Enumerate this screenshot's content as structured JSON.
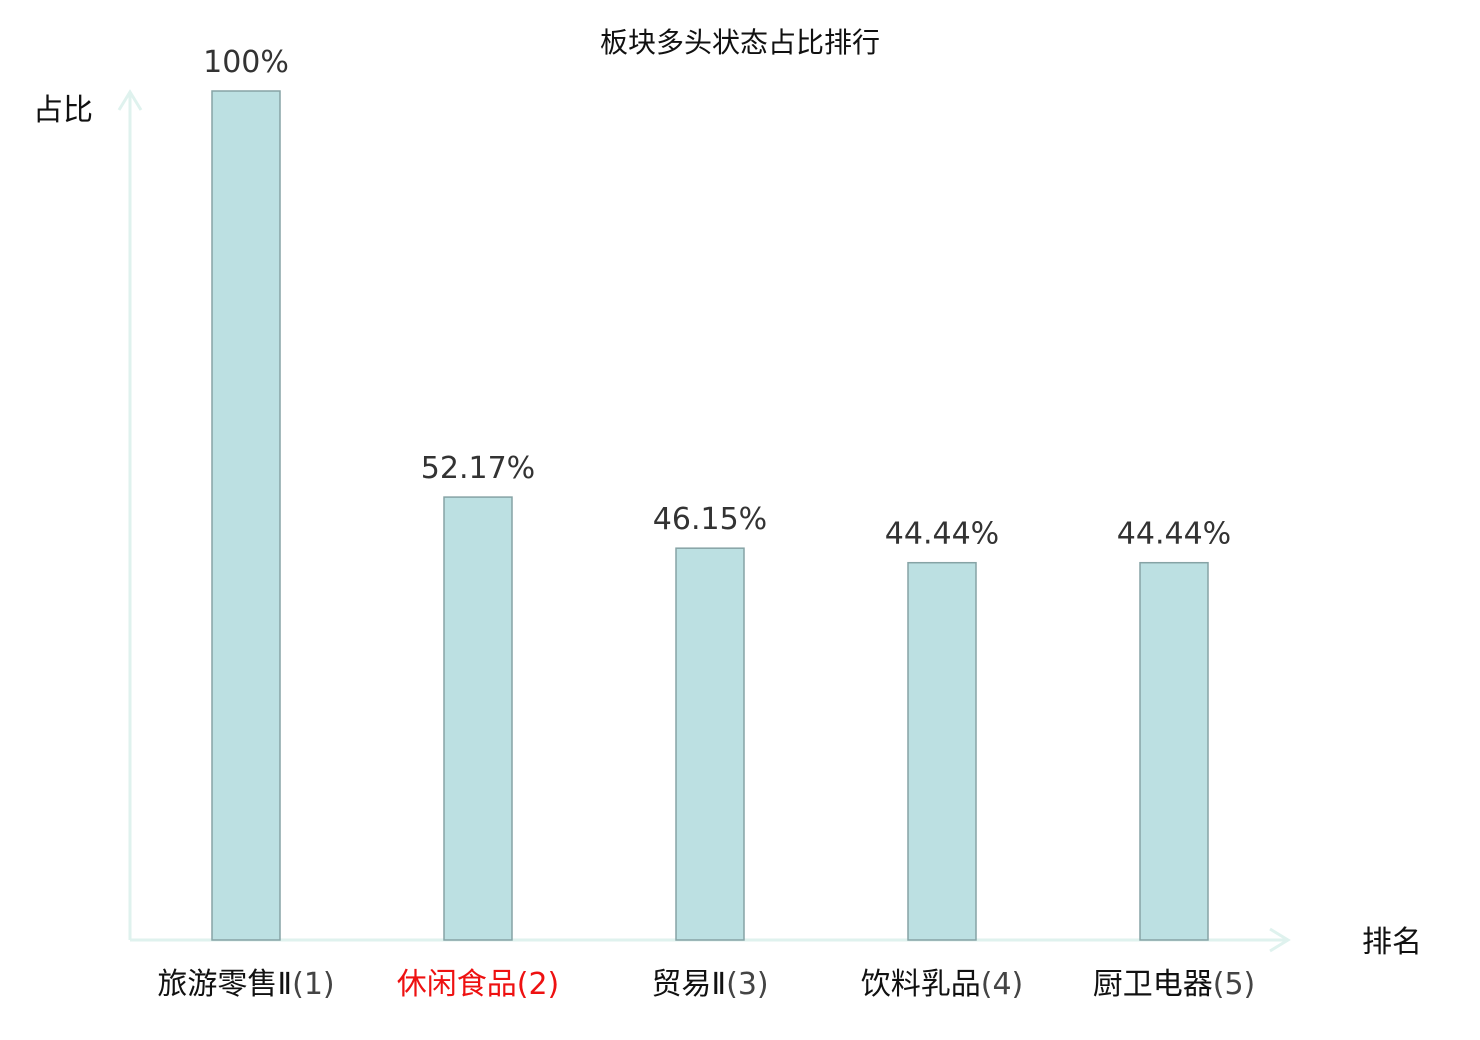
{
  "chart_data": {
    "type": "bar",
    "title": "板块多头状态占比排行",
    "ylabel": "占比",
    "xlabel": "排名",
    "ylim": [
      0,
      100
    ],
    "grid": false,
    "categories": [
      {
        "name": "旅游零售Ⅱ",
        "rank": "(1)",
        "highlight": false
      },
      {
        "name": "休闲食品",
        "rank": "(2)",
        "highlight": true
      },
      {
        "name": "贸易Ⅱ",
        "rank": "(3)",
        "highlight": false
      },
      {
        "name": "饮料乳品",
        "rank": "(4)",
        "highlight": false
      },
      {
        "name": "厨卫电器",
        "rank": "(5)",
        "highlight": false
      }
    ],
    "values": [
      100,
      52.17,
      46.15,
      44.44,
      44.44
    ],
    "value_labels": [
      "100%",
      "52.17%",
      "46.15%",
      "44.44%",
      "44.44%"
    ],
    "colors": {
      "bar_fill": "#bce0e2",
      "bar_stroke": "#86a3a5",
      "axis": "#dff2ee",
      "highlight_text": "#ee1111",
      "name_text": "#111111",
      "rank_text": "#444444"
    }
  }
}
